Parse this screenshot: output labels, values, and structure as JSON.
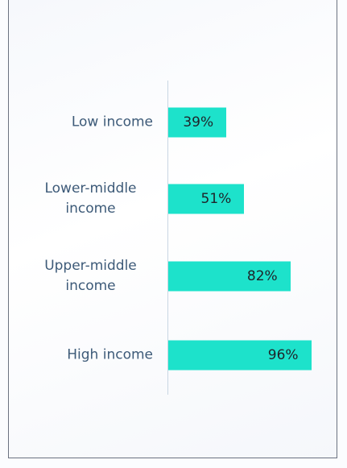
{
  "chart_data": {
    "type": "bar",
    "orientation": "horizontal",
    "categories": [
      "Low income",
      "Lower-middle income",
      "Upper-middle income",
      "High income"
    ],
    "values": [
      39,
      51,
      82,
      96
    ],
    "value_labels": [
      "39%",
      "51%",
      "82%",
      "96%"
    ],
    "color": "#1de2cb"
  }
}
